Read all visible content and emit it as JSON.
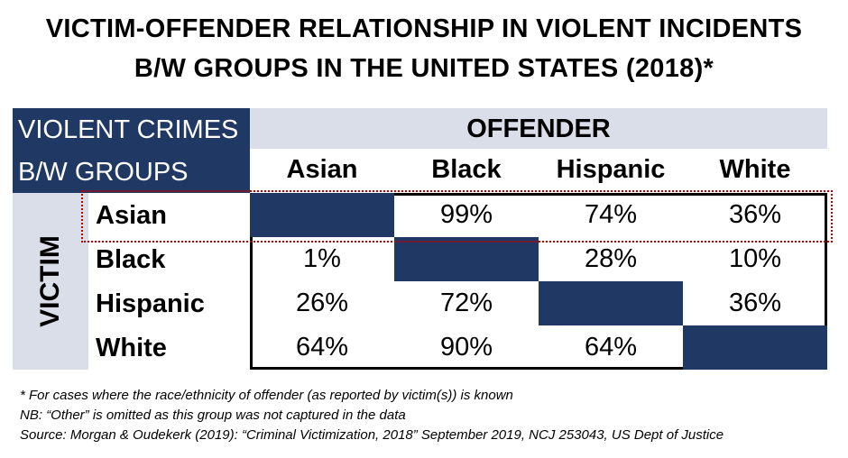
{
  "chart_data": {
    "type": "table",
    "title_line1": "VICTIM-OFFENDER RELATIONSHIP IN VIOLENT INCIDENTS",
    "title_line2": "B/W GROUPS IN THE UNITED STATES (2018)*",
    "corner_line1": "VIOLENT CRIMES",
    "corner_line2": "B/W GROUPS",
    "offender_label": "OFFENDER",
    "victim_label": "VICTIM",
    "columns": [
      "Asian",
      "Black",
      "Hispanic",
      "White"
    ],
    "rows": [
      {
        "label": "Asian",
        "values": [
          "",
          "99%",
          "74%",
          "36%"
        ]
      },
      {
        "label": "Black",
        "values": [
          "1%",
          "",
          "28%",
          "10%"
        ]
      },
      {
        "label": "Hispanic",
        "values": [
          "26%",
          "72%",
          "",
          "36%"
        ]
      },
      {
        "label": "White",
        "values": [
          "64%",
          "90%",
          "64%",
          ""
        ]
      }
    ],
    "highlighted_row": "Asian",
    "colors": {
      "dark": "#1f3864",
      "light": "#d9dee8",
      "highlight": "#c00000"
    }
  },
  "footnotes": {
    "note1": "* For cases where the race/ethnicity of offender (as reported by victim(s)) is known",
    "note2": "NB: “Other” is omitted as this group was not captured in the data",
    "note3": "Source: Morgan & Oudekerk (2019): “Criminal Victimization, 2018”  September 2019, NCJ 253043, US Dept of Justice"
  }
}
